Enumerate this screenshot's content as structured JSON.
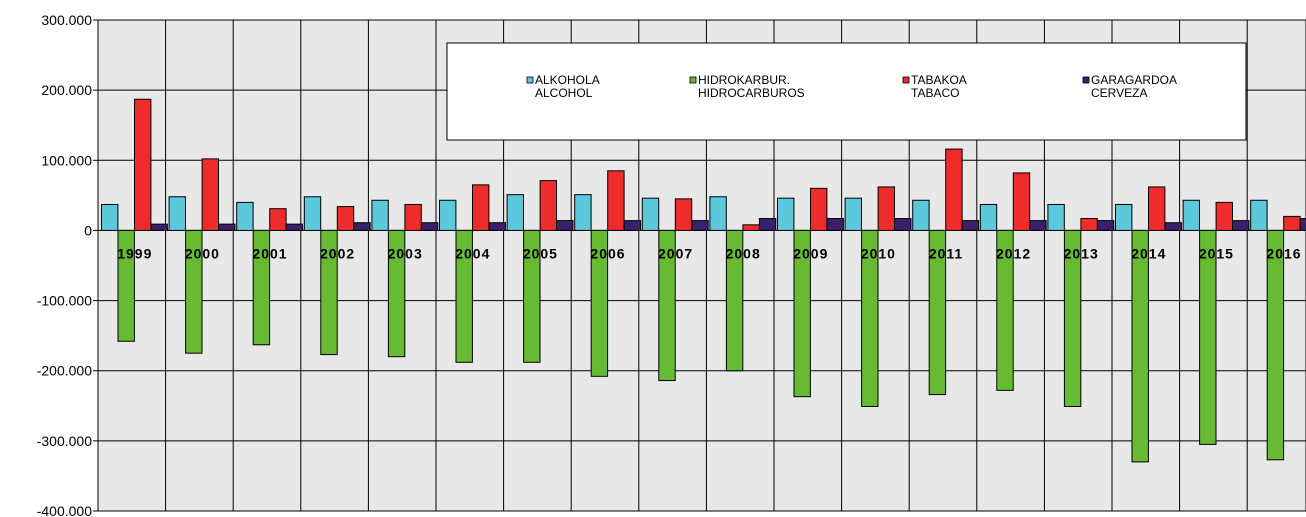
{
  "chart_data": {
    "type": "bar",
    "categories": [
      "1999",
      "2000",
      "2001",
      "2002",
      "2003",
      "2004",
      "2005",
      "2006",
      "2007",
      "2008",
      "2009",
      "2010",
      "2011",
      "2012",
      "2013",
      "2014",
      "2015",
      "2016"
    ],
    "ylim": [
      -400000,
      300000
    ],
    "yticks": [
      300000,
      200000,
      100000,
      0,
      -100000,
      -200000,
      -300000,
      -400000
    ],
    "ytick_labels": [
      "300.000",
      "200.000",
      "100.000",
      "0",
      "-100.000",
      "-200.000",
      "-300.000",
      "-400.000"
    ],
    "grid": true,
    "legend_position": "top-right",
    "series": [
      {
        "legend_lines": [
          "ALKOHOLA",
          "ALCOHOL"
        ],
        "color": "#5bc8dc",
        "values": [
          37000,
          48000,
          40000,
          48000,
          43000,
          43000,
          51000,
          51000,
          46000,
          48000,
          46000,
          46000,
          43000,
          37000,
          37000,
          37000,
          43000,
          43000
        ]
      },
      {
        "legend_lines": [
          "HIDROKARBUR.",
          "HIDROCARBUROS"
        ],
        "color": "#66bb33",
        "values": [
          -158000,
          -175000,
          -163000,
          -177000,
          -180000,
          -188000,
          -188000,
          -208000,
          -214000,
          -200000,
          -237000,
          -251000,
          -234000,
          -228000,
          -251000,
          -330000,
          -305000,
          -327000
        ]
      },
      {
        "legend_lines": [
          "TABAKOA",
          "TABACO"
        ],
        "color": "#ee2c2c",
        "values": [
          187000,
          102000,
          31000,
          34000,
          37000,
          65000,
          71000,
          85000,
          45000,
          8000,
          60000,
          62000,
          116000,
          82000,
          17000,
          62000,
          40000,
          20000
        ]
      },
      {
        "legend_lines": [
          "GARAGARDOA",
          "CERVEZA"
        ],
        "color": "#3a1f6b",
        "values": [
          9000,
          9000,
          9000,
          11000,
          11000,
          11000,
          14000,
          14000,
          14000,
          17000,
          17000,
          17000,
          14000,
          14000,
          14000,
          11000,
          14000,
          17000
        ]
      }
    ]
  }
}
